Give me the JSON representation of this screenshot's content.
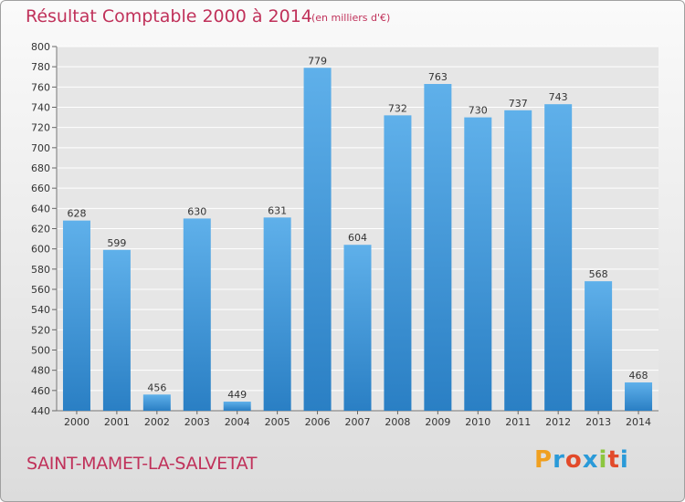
{
  "title": "Résultat Comptable 2000 à 2014",
  "subtitle": "(en milliers d'€)",
  "commune": "SAINT-MAMET-LA-SALVETAT",
  "logo": {
    "letters": [
      "P",
      "r",
      "o",
      "x",
      "i",
      "t",
      "i"
    ],
    "colors": [
      "#f0a020",
      "#2a9ad8",
      "#e24a2a",
      "#2a9ad8",
      "#8cc63f",
      "#e24a2a",
      "#2a9ad8"
    ]
  },
  "colors": {
    "bar_top": "#5fb0ea",
    "bar_bottom": "#2a7fc4",
    "title": "#c0315a",
    "grid": "#ffffff"
  },
  "chart_data": {
    "type": "bar",
    "categories": [
      "2000",
      "2001",
      "2002",
      "2003",
      "2004",
      "2005",
      "2006",
      "2007",
      "2008",
      "2009",
      "2010",
      "2011",
      "2012",
      "2013",
      "2014"
    ],
    "values": [
      628,
      599,
      456,
      630,
      449,
      631,
      779,
      604,
      732,
      763,
      730,
      737,
      743,
      568,
      468
    ],
    "ylim": [
      440,
      800
    ],
    "yticks": [
      440,
      460,
      480,
      500,
      520,
      540,
      560,
      580,
      600,
      620,
      640,
      660,
      680,
      700,
      720,
      740,
      760,
      780,
      800
    ],
    "grid": true
  }
}
